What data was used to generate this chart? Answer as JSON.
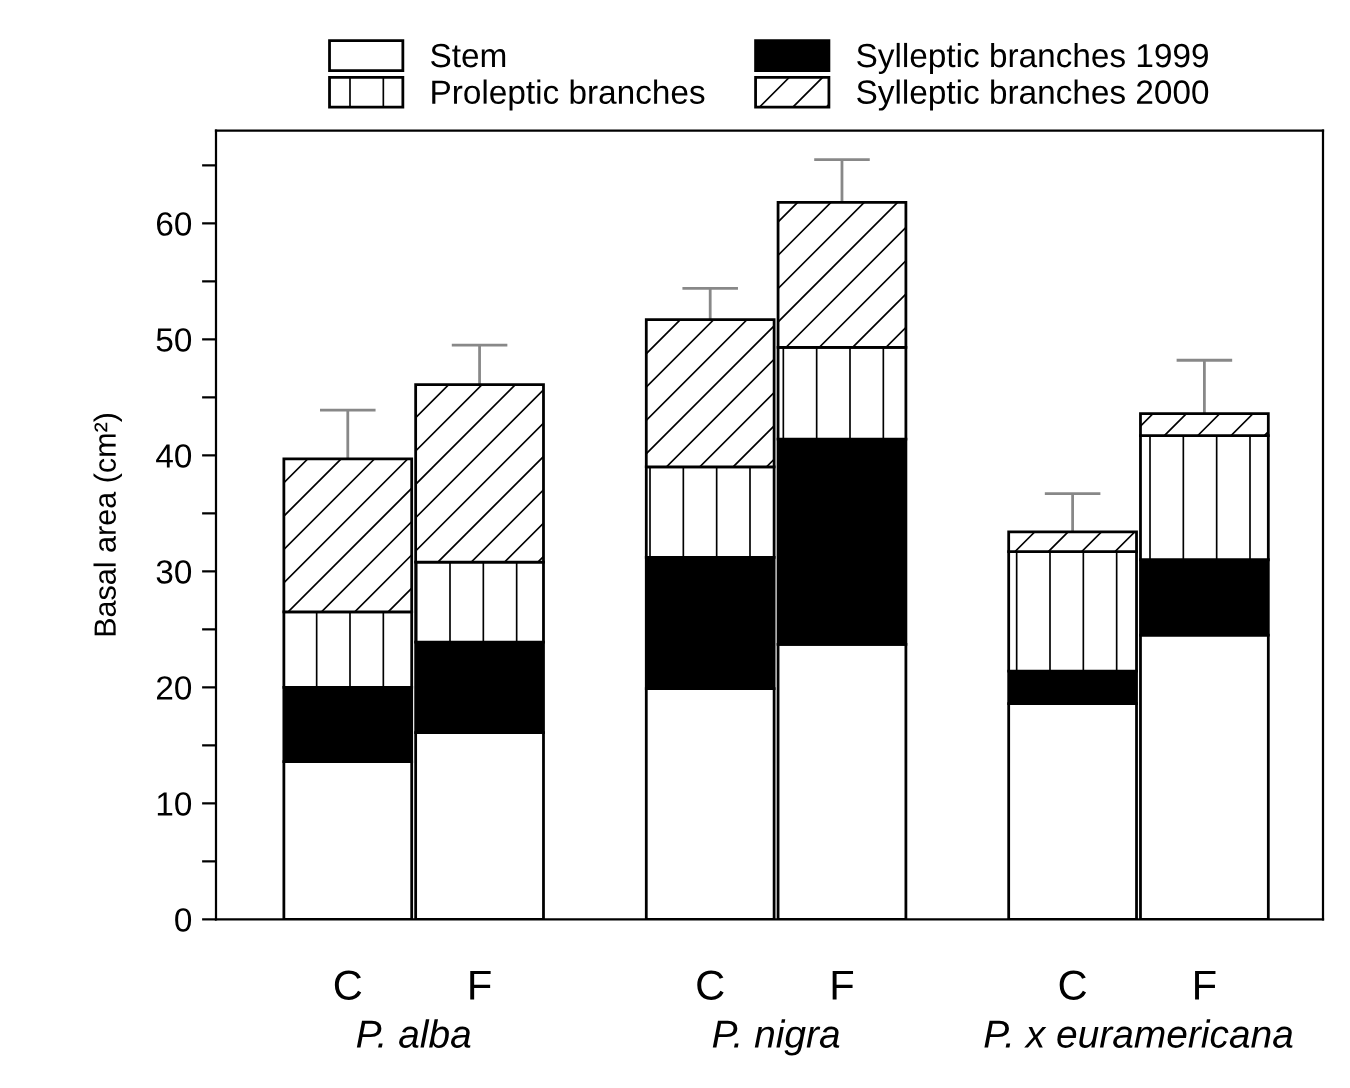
{
  "chart_data": {
    "type": "bar",
    "stacked": true,
    "ylabel": "Basal area (cm²)",
    "categories": [
      "C",
      "F",
      "C",
      "F",
      "C",
      "F"
    ],
    "series": [
      {
        "name": "Stem",
        "color": "#ffffff",
        "values": [
          13.6,
          16.1,
          19.9,
          23.7,
          18.6,
          24.5
        ]
      },
      {
        "name": "Sylleptic branches 1999",
        "color": "#000000",
        "values": [
          6.4,
          7.8,
          11.3,
          17.7,
          2.8,
          6.5
        ]
      },
      {
        "name": "Proleptic branches",
        "color": "#000000",
        "values": [
          6.5,
          6.9,
          7.8,
          7.9,
          10.3,
          10.7
        ]
      },
      {
        "name": "Sylleptic branches 2000",
        "color": "#000000",
        "values": [
          13.2,
          15.3,
          12.7,
          12.5,
          1.7,
          1.9
        ],
        "errors": [
          4.2,
          3.4,
          2.7,
          3.7,
          3.3,
          4.6
        ]
      }
    ],
    "ylim": [
      0,
      68
    ],
    "yticks": [
      0,
      {
        "value": 5,
        "label": null
      },
      10,
      {
        "value": 15,
        "label": null
      },
      20,
      {
        "value": 25,
        "label": null
      },
      30,
      {
        "value": 35,
        "label": null
      },
      40,
      {
        "value": 45,
        "label": null
      },
      50,
      {
        "value": 55,
        "label": null
      },
      60,
      {
        "value": 65,
        "label": null
      }
    ],
    "grid": false,
    "legend": "top",
    "annotations": [
      "P. alba",
      "P. nigra",
      "P. x euramericana"
    ]
  }
}
